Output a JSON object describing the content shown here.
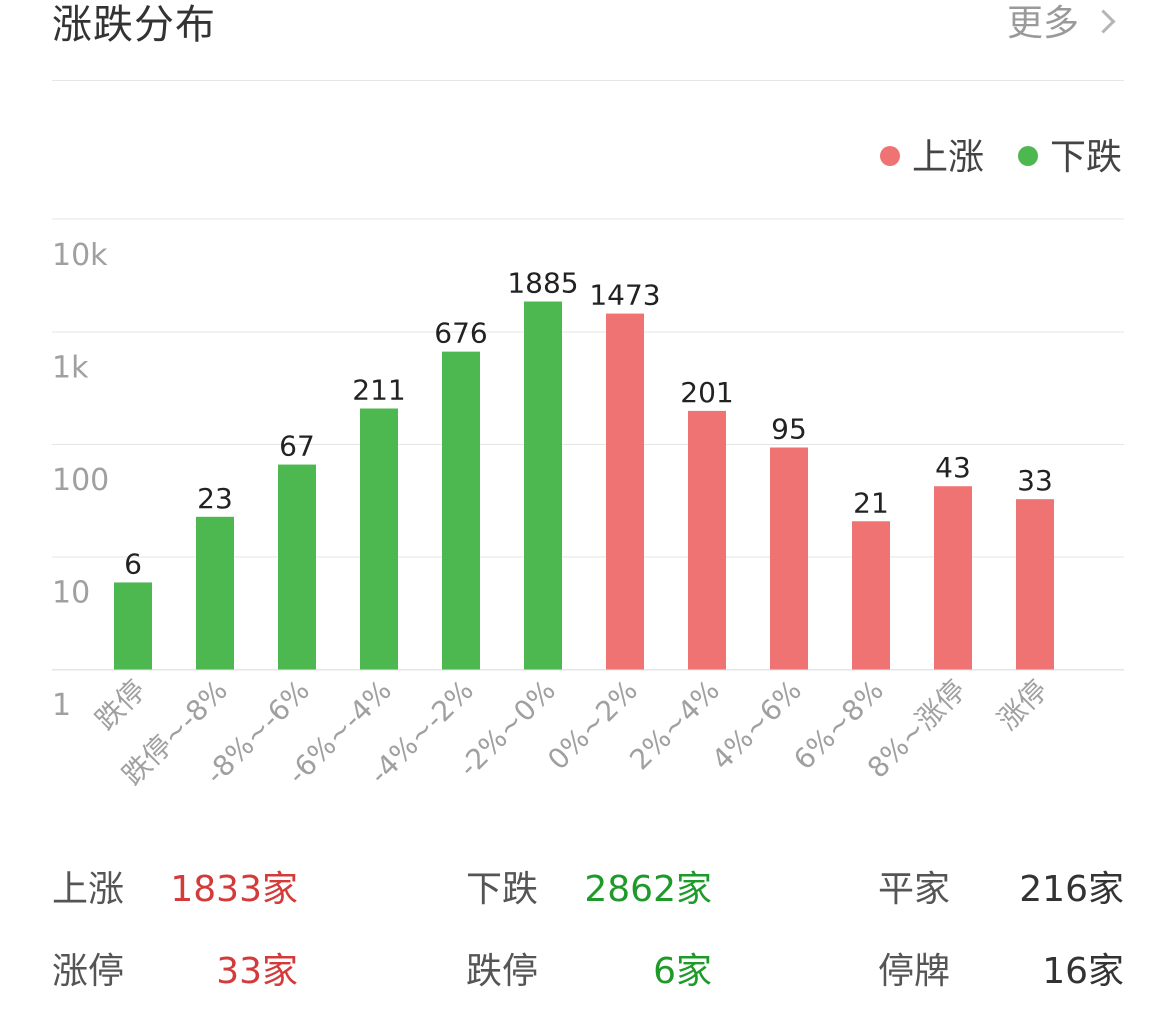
{
  "header": {
    "title": "涨跌分布",
    "more_label": "更多"
  },
  "colors": {
    "up": "#ef7373",
    "down": "#4db84f",
    "grid": "#e6e6e6",
    "tick_text": "#a0a0a0",
    "value_text": "#222222"
  },
  "chart_data": {
    "type": "bar",
    "yscale": "log",
    "ylim": [
      1,
      10000
    ],
    "yticks": [
      {
        "value": 10000,
        "label": "10k"
      },
      {
        "value": 1000,
        "label": "1k"
      },
      {
        "value": 100,
        "label": "100"
      },
      {
        "value": 10,
        "label": "10"
      },
      {
        "value": 1,
        "label": "1"
      }
    ],
    "legend_position": "top-right",
    "series": [
      {
        "name": "上涨",
        "color": "#ef7373"
      },
      {
        "name": "下跌",
        "color": "#4db84f"
      }
    ],
    "categories": [
      "跌停",
      "跌停~-8%",
      "-8%~-6%",
      "-6%~-4%",
      "-4%~-2%",
      "-2%~0%",
      "0%~2%",
      "2%~4%",
      "4%~6%",
      "6%~8%",
      "8%~涨停",
      "涨停"
    ],
    "values": [
      6,
      23,
      67,
      211,
      676,
      1885,
      1473,
      201,
      95,
      21,
      43,
      33
    ],
    "bar_series": [
      "下跌",
      "下跌",
      "下跌",
      "下跌",
      "下跌",
      "下跌",
      "上涨",
      "上涨",
      "上涨",
      "上涨",
      "上涨",
      "上涨"
    ]
  },
  "stats": {
    "row1": [
      {
        "label": "上涨",
        "value": "1833家",
        "tone": "red"
      },
      {
        "label": "下跌",
        "value": "2862家",
        "tone": "green"
      },
      {
        "label": "平家",
        "value": "216家",
        "tone": "dark"
      }
    ],
    "row2": [
      {
        "label": "涨停",
        "value": "33家",
        "tone": "red"
      },
      {
        "label": "跌停",
        "value": "6家",
        "tone": "green"
      },
      {
        "label": "停牌",
        "value": "16家",
        "tone": "dark"
      }
    ]
  }
}
